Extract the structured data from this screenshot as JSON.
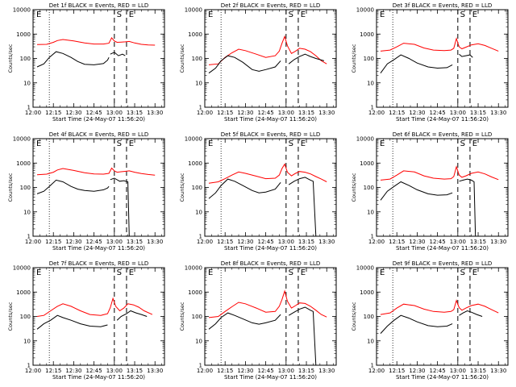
{
  "chart_data": {
    "type": "line",
    "layout": "3x3 grid",
    "x_axis": {
      "ticks": [
        "12:00",
        "12:15",
        "12:30",
        "12:45",
        "13:00",
        "13:15",
        "13:30"
      ],
      "tick_minutes_after_noon": [
        0,
        15,
        30,
        45,
        60,
        75,
        90
      ],
      "xlim_minutes_after_noon": [
        0,
        97
      ],
      "xlabel": "Start Time (24-May-07 11:56:20)"
    },
    "y_axis": {
      "scale": "log",
      "ylim": [
        1,
        10000
      ],
      "ticks": [
        "1",
        "10",
        "100",
        "1000",
        "10000"
      ],
      "tick_values": [
        1,
        10,
        100,
        1000,
        10000
      ],
      "ylabel": "Counts/sec"
    },
    "grid": false,
    "markers": {
      "dotted_line_minutes": [
        12
      ],
      "dashed_lines": [
        {
          "label": "S",
          "minutes": 60
        },
        {
          "label": "E",
          "minutes": 69
        }
      ],
      "corner_label": "E"
    },
    "colors": {
      "events": "#000000",
      "lld": "#ff0000"
    },
    "panels": [
      {
        "title": "Det 1f BLACK = Events, RED = LLD",
        "series": [
          {
            "color": "#ff0000",
            "x": [
              3,
              10,
              15,
              18,
              22,
              30,
              38,
              45,
              52,
              56,
              58,
              60,
              62,
              65,
              68,
              71,
              75,
              80,
              85,
              90
            ],
            "y": [
              370,
              380,
              460,
              540,
              600,
              520,
              430,
              390,
              390,
              420,
              700,
              520,
              460,
              470,
              480,
              500,
              430,
              380,
              360,
              350
            ]
          },
          {
            "color": "#000000",
            "x": [
              3,
              8,
              12,
              17,
              22,
              28,
              33,
              38,
              45,
              52,
              55,
              56
            ],
            "y": [
              45,
              60,
              110,
              190,
              160,
              110,
              75,
              58,
              55,
              62,
              85,
              110
            ],
            "x2": [
              57,
              60,
              63,
              66,
              68
            ],
            "y2": [
              150,
              180,
              130,
              150,
              130
            ]
          }
        ]
      },
      {
        "title": "Det 2f BLACK = Events, RED = LLD",
        "series": [
          {
            "color": "#ff0000",
            "x": [
              3,
              10,
              15,
              20,
              25,
              30,
              38,
              45,
              52,
              55,
              57,
              59,
              61,
              64,
              67,
              70,
              74,
              78,
              82,
              86,
              90
            ],
            "y": [
              55,
              60,
              110,
              170,
              240,
              210,
              150,
              110,
              130,
              200,
              420,
              800,
              330,
              160,
              200,
              260,
              240,
              190,
              130,
              80,
              60
            ]
          },
          {
            "color": "#000000",
            "x": [
              3,
              8,
              12,
              17,
              22,
              28,
              35,
              40,
              45,
              52,
              56
            ],
            "y": [
              25,
              40,
              80,
              130,
              110,
              70,
              35,
              30,
              35,
              45,
              80
            ],
            "x2": [
              62,
              66,
              70,
              74,
              78,
              82,
              88
            ],
            "y2": [
              60,
              90,
              120,
              150,
              120,
              100,
              80
            ]
          }
        ]
      },
      {
        "title": "Det 3f BLACK = Events, RED = LLD",
        "series": [
          {
            "color": "#ff0000",
            "x": [
              3,
              10,
              15,
              20,
              28,
              35,
              42,
              50,
              55,
              57,
              59,
              61,
              63,
              66,
              70,
              75,
              80,
              85,
              90
            ],
            "y": [
              200,
              220,
              300,
              420,
              380,
              270,
              220,
              210,
              220,
              260,
              650,
              300,
              250,
              290,
              360,
              400,
              340,
              260,
              200
            ]
          },
          {
            "color": "#000000",
            "x": [
              3,
              8,
              13,
              18,
              24,
              30,
              38,
              45,
              52,
              56
            ],
            "y": [
              25,
              60,
              90,
              140,
              100,
              65,
              45,
              40,
              42,
              55
            ],
            "x2": [
              61,
              63,
              66,
              69,
              71
            ],
            "y2": [
              150,
              120,
              130,
              140,
              110
            ]
          }
        ]
      },
      {
        "title": "Det 4f BLACK = Events, RED = LLD",
        "series": [
          {
            "color": "#ff0000",
            "x": [
              3,
              10,
              15,
              18,
              22,
              30,
              38,
              45,
              52,
              56,
              58,
              60,
              62,
              65,
              68,
              71,
              75,
              80,
              85,
              90
            ],
            "y": [
              330,
              350,
              420,
              520,
              600,
              500,
              400,
              360,
              350,
              380,
              620,
              480,
              420,
              440,
              460,
              480,
              420,
              370,
              340,
              320
            ]
          },
          {
            "color": "#000000",
            "x": [
              3,
              8,
              12,
              17,
              22,
              28,
              33,
              38,
              45,
              52,
              55,
              56
            ],
            "y": [
              55,
              70,
              110,
              200,
              170,
              110,
              85,
              75,
              70,
              80,
              95,
              110
            ],
            "x2": [
              57,
              60,
              64,
              67,
              70,
              71
            ],
            "y2": [
              210,
              240,
              180,
              190,
              170,
              1
            ]
          }
        ]
      },
      {
        "title": "Det 5f BLACK = Events, RED = LLD",
        "series": [
          {
            "color": "#ff0000",
            "x": [
              3,
              10,
              15,
              20,
              25,
              30,
              38,
              45,
              52,
              55,
              57,
              59,
              61,
              64,
              67,
              70,
              74,
              78,
              82,
              86,
              90
            ],
            "y": [
              150,
              170,
              230,
              320,
              430,
              380,
              290,
              230,
              240,
              320,
              600,
              900,
              420,
              300,
              380,
              450,
              420,
              360,
              280,
              220,
              170
            ]
          },
          {
            "color": "#000000",
            "x": [
              3,
              8,
              12,
              17,
              22,
              28,
              35,
              40,
              45,
              52,
              56
            ],
            "y": [
              35,
              60,
              120,
              220,
              180,
              120,
              75,
              60,
              65,
              85,
              160
            ],
            "x2": [
              62,
              66,
              70,
              74,
              78,
              80,
              82
            ],
            "y2": [
              130,
              180,
              230,
              260,
              200,
              180,
              1
            ]
          }
        ]
      },
      {
        "title": "Det 6f BLACK = Events, RED = LLD",
        "series": [
          {
            "color": "#ff0000",
            "x": [
              3,
              10,
              15,
              20,
              28,
              35,
              42,
              50,
              55,
              57,
              59,
              61,
              63,
              66,
              70,
              75,
              80,
              85,
              90
            ],
            "y": [
              200,
              220,
              320,
              480,
              430,
              300,
              240,
              220,
              230,
              280,
              700,
              320,
              260,
              300,
              380,
              430,
              360,
              270,
              210
            ]
          },
          {
            "color": "#000000",
            "x": [
              3,
              8,
              13,
              18,
              24,
              30,
              38,
              45,
              52,
              56
            ],
            "y": [
              30,
              70,
              110,
              170,
              120,
              80,
              55,
              48,
              50,
              60
            ],
            "x2": [
              61,
              64,
              67,
              70,
              72,
              73
            ],
            "y2": [
              180,
              200,
              220,
              200,
              170,
              1
            ]
          }
        ]
      },
      {
        "title": "Det 7f BLACK = Events, RED = LLD",
        "series": [
          {
            "color": "#ff0000",
            "x": [
              3,
              8,
              13,
              18,
              22,
              28,
              35,
              42,
              50,
              55,
              57,
              59,
              61,
              64,
              67,
              70,
              74,
              78,
              82,
              88
            ],
            "y": [
              100,
              110,
              170,
              260,
              330,
              260,
              170,
              120,
              110,
              130,
              230,
              550,
              260,
              170,
              220,
              330,
              300,
              240,
              170,
              120
            ]
          },
          {
            "color": "#000000",
            "x": [
              3,
              8,
              13,
              18,
              22,
              28,
              35,
              42,
              50,
              55
            ],
            "y": [
              30,
              50,
              70,
              110,
              90,
              70,
              50,
              40,
              38,
              45
            ],
            "x2": [
              62,
              65,
              69,
              72,
              76,
              80,
              84
            ],
            "y2": [
              70,
              100,
              130,
              170,
              140,
              120,
              100
            ]
          }
        ]
      },
      {
        "title": "Det 8f BLACK = Events, RED = LLD",
        "series": [
          {
            "color": "#ff0000",
            "x": [
              3,
              10,
              15,
              20,
              25,
              30,
              38,
              45,
              52,
              55,
              57,
              59,
              61,
              64,
              67,
              70,
              74,
              78,
              82,
              86,
              90
            ],
            "y": [
              90,
              100,
              160,
              250,
              380,
              330,
              220,
              150,
              160,
              260,
              500,
              1100,
              420,
              220,
              280,
              360,
              340,
              260,
              180,
              120,
              95
            ]
          },
          {
            "color": "#000000",
            "x": [
              3,
              8,
              12,
              17,
              22,
              28,
              35,
              40,
              45,
              52,
              56
            ],
            "y": [
              30,
              50,
              90,
              140,
              110,
              80,
              55,
              48,
              55,
              70,
              120
            ],
            "x2": [
              62,
              66,
              70,
              74,
              78,
              80,
              82
            ],
            "y2": [
              110,
              150,
              200,
              240,
              180,
              160,
              1
            ]
          }
        ]
      },
      {
        "title": "Det 9f BLACK = Events, RED = LLD",
        "series": [
          {
            "color": "#ff0000",
            "x": [
              3,
              10,
              15,
              20,
              28,
              35,
              42,
              50,
              55,
              57,
              59,
              61,
              63,
              66,
              70,
              75,
              80,
              85,
              90
            ],
            "y": [
              120,
              140,
              220,
              320,
              280,
              200,
              160,
              150,
              160,
              190,
              450,
              230,
              180,
              220,
              280,
              320,
              260,
              190,
              140
            ]
          },
          {
            "color": "#000000",
            "x": [
              3,
              8,
              13,
              18,
              24,
              30,
              38,
              45,
              52,
              56
            ],
            "y": [
              20,
              40,
              70,
              110,
              85,
              60,
              42,
              38,
              40,
              50
            ],
            "x2": [
              61,
              64,
              67,
              70,
              74,
              78
            ],
            "y2": [
              110,
              140,
              170,
              150,
              120,
              100
            ]
          }
        ]
      }
    ]
  }
}
